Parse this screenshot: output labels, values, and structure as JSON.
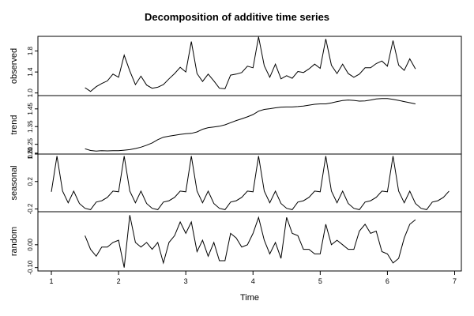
{
  "chart_data": {
    "type": "line",
    "title": "Decomposition of additive time series",
    "xlabel": "Time",
    "xlim": [
      0.8,
      7.1
    ],
    "x_ticks": [
      "1",
      "2",
      "3",
      "4",
      "5",
      "6",
      "7"
    ],
    "grid": false,
    "legend": "none",
    "line_color": "#000000",
    "panels": [
      {
        "name": "observed",
        "ylabel": "observed",
        "ylim": [
          0.95,
          2.08
        ],
        "y_ticks": [
          "1.0",
          "1.4",
          "1.8"
        ],
        "x": [
          1.5,
          1.583,
          1.667,
          1.75,
          1.833,
          1.917,
          2.0,
          2.083,
          2.167,
          2.25,
          2.333,
          2.417,
          2.5,
          2.583,
          2.667,
          2.75,
          2.833,
          2.917,
          3.0,
          3.083,
          3.167,
          3.25,
          3.333,
          3.417,
          3.5,
          3.583,
          3.667,
          3.75,
          3.833,
          3.917,
          4.0,
          4.083,
          4.167,
          4.25,
          4.333,
          4.417,
          4.5,
          4.583,
          4.667,
          4.75,
          4.833,
          4.917,
          5.0,
          5.083,
          5.167,
          5.25,
          5.333,
          5.417,
          5.5,
          5.583,
          5.667,
          5.75,
          5.833,
          5.917,
          6.0,
          6.083,
          6.167,
          6.25,
          6.333,
          6.417
        ],
        "values": [
          1.1,
          1.03,
          1.12,
          1.18,
          1.23,
          1.36,
          1.3,
          1.72,
          1.42,
          1.16,
          1.32,
          1.15,
          1.09,
          1.11,
          1.16,
          1.27,
          1.37,
          1.49,
          1.4,
          1.98,
          1.37,
          1.22,
          1.36,
          1.23,
          1.09,
          1.08,
          1.34,
          1.36,
          1.39,
          1.51,
          1.48,
          2.07,
          1.52,
          1.3,
          1.55,
          1.27,
          1.33,
          1.28,
          1.41,
          1.39,
          1.46,
          1.55,
          1.47,
          2.03,
          1.53,
          1.37,
          1.55,
          1.37,
          1.3,
          1.36,
          1.48,
          1.48,
          1.56,
          1.61,
          1.51,
          2.0,
          1.53,
          1.43,
          1.65,
          1.46
        ]
      },
      {
        "name": "trend",
        "ylabel": "trend",
        "ylim": [
          1.195,
          1.525
        ],
        "y_ticks": [
          "1.20",
          "1.25",
          "1.35",
          "1.45"
        ],
        "x": [
          1.5,
          1.583,
          1.667,
          1.75,
          1.833,
          1.917,
          2.0,
          2.083,
          2.167,
          2.25,
          2.333,
          2.417,
          2.5,
          2.583,
          2.667,
          2.75,
          2.833,
          2.917,
          3.0,
          3.083,
          3.167,
          3.25,
          3.333,
          3.417,
          3.5,
          3.583,
          3.667,
          3.75,
          3.833,
          3.917,
          4.0,
          4.083,
          4.167,
          4.25,
          4.333,
          4.417,
          4.5,
          4.583,
          4.667,
          4.75,
          4.833,
          4.917,
          5.0,
          5.083,
          5.167,
          5.25,
          5.333,
          5.417,
          5.5,
          5.583,
          5.667,
          5.75,
          5.833,
          5.917,
          6.0,
          6.083,
          6.167,
          6.25,
          6.333,
          6.417
        ],
        "values": [
          1.225,
          1.215,
          1.212,
          1.214,
          1.213,
          1.214,
          1.214,
          1.217,
          1.22,
          1.226,
          1.234,
          1.245,
          1.258,
          1.276,
          1.29,
          1.296,
          1.301,
          1.306,
          1.31,
          1.312,
          1.32,
          1.335,
          1.344,
          1.348,
          1.352,
          1.36,
          1.372,
          1.384,
          1.394,
          1.405,
          1.418,
          1.437,
          1.447,
          1.451,
          1.456,
          1.46,
          1.461,
          1.461,
          1.463,
          1.466,
          1.471,
          1.476,
          1.478,
          1.478,
          1.484,
          1.491,
          1.497,
          1.5,
          1.498,
          1.494,
          1.495,
          1.5,
          1.506,
          1.508,
          1.508,
          1.504,
          1.498,
          1.491,
          1.485,
          1.478
        ]
      },
      {
        "name": "seasonal",
        "ylabel": "seasonal",
        "ylim": [
          -0.24,
          0.6
        ],
        "y_ticks": [
          "-0.2",
          "0.2",
          "0.6"
        ],
        "x": [
          1.0,
          1.083,
          1.167,
          1.25,
          1.333,
          1.417,
          1.5,
          1.583,
          1.667,
          1.75,
          1.833,
          1.917,
          2.0,
          2.083,
          2.167,
          2.25,
          2.333,
          2.417,
          2.5,
          2.583,
          2.667,
          2.75,
          2.833,
          2.917,
          3.0,
          3.083,
          3.167,
          3.25,
          3.333,
          3.417,
          3.5,
          3.583,
          3.667,
          3.75,
          3.833,
          3.917,
          4.0,
          4.083,
          4.167,
          4.25,
          4.333,
          4.417,
          4.5,
          4.583,
          4.667,
          4.75,
          4.833,
          4.917,
          5.0,
          5.083,
          5.167,
          5.25,
          5.333,
          5.417,
          5.5,
          5.583,
          5.667,
          5.75,
          5.833,
          5.917,
          6.0,
          6.083,
          6.167,
          6.25,
          6.333,
          6.417,
          6.5,
          6.583,
          6.667,
          6.75,
          6.833,
          6.917
        ],
        "values": [
          0.05,
          0.57,
          0.06,
          -0.11,
          0.06,
          -0.12,
          -0.19,
          -0.21,
          -0.1,
          -0.08,
          -0.03,
          0.06,
          0.05,
          0.57,
          0.06,
          -0.11,
          0.06,
          -0.12,
          -0.19,
          -0.21,
          -0.1,
          -0.08,
          -0.03,
          0.06,
          0.05,
          0.57,
          0.06,
          -0.11,
          0.06,
          -0.12,
          -0.19,
          -0.21,
          -0.1,
          -0.08,
          -0.03,
          0.06,
          0.05,
          0.57,
          0.06,
          -0.11,
          0.06,
          -0.12,
          -0.19,
          -0.21,
          -0.1,
          -0.08,
          -0.03,
          0.06,
          0.05,
          0.57,
          0.06,
          -0.11,
          0.06,
          -0.12,
          -0.19,
          -0.21,
          -0.1,
          -0.08,
          -0.03,
          0.06,
          0.05,
          0.57,
          0.06,
          -0.11,
          0.06,
          -0.12,
          -0.19,
          -0.21,
          -0.1,
          -0.08,
          -0.03,
          0.06
        ]
      },
      {
        "name": "random",
        "ylabel": "random",
        "ylim": [
          -0.115,
          0.145
        ],
        "y_ticks": [
          "-0.10",
          "0.00"
        ],
        "x": [
          1.5,
          1.583,
          1.667,
          1.75,
          1.833,
          1.917,
          2.0,
          2.083,
          2.167,
          2.25,
          2.333,
          2.417,
          2.5,
          2.583,
          2.667,
          2.75,
          2.833,
          2.917,
          3.0,
          3.083,
          3.167,
          3.25,
          3.333,
          3.417,
          3.5,
          3.583,
          3.667,
          3.75,
          3.833,
          3.917,
          4.0,
          4.083,
          4.167,
          4.25,
          4.333,
          4.417,
          4.5,
          4.583,
          4.667,
          4.75,
          4.833,
          4.917,
          5.0,
          5.083,
          5.167,
          5.25,
          5.333,
          5.417,
          5.5,
          5.583,
          5.667,
          5.75,
          5.833,
          5.917,
          6.0,
          6.083,
          6.167,
          6.25,
          6.333,
          6.417
        ],
        "values": [
          0.04,
          -0.02,
          -0.05,
          -0.01,
          -0.01,
          0.01,
          0.02,
          -0.1,
          0.13,
          0.01,
          -0.01,
          0.01,
          -0.02,
          0.01,
          -0.08,
          0.01,
          0.04,
          0.1,
          0.05,
          0.1,
          -0.03,
          0.02,
          -0.05,
          0.01,
          -0.07,
          -0.07,
          0.05,
          0.03,
          -0.01,
          0.0,
          0.05,
          0.12,
          0.02,
          -0.04,
          0.01,
          -0.06,
          0.12,
          0.05,
          0.04,
          -0.02,
          -0.02,
          -0.04,
          -0.04,
          0.09,
          0.0,
          0.02,
          0.0,
          -0.02,
          -0.02,
          0.06,
          0.09,
          0.05,
          0.06,
          -0.03,
          -0.04,
          -0.08,
          -0.06,
          0.03,
          0.09,
          0.11
        ]
      }
    ]
  }
}
